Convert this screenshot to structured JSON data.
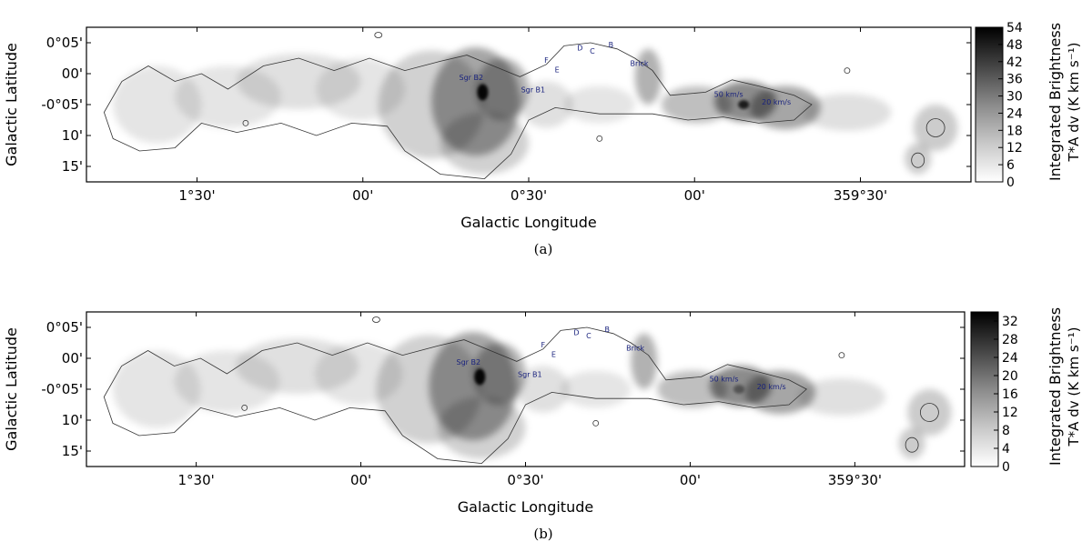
{
  "chart_data": [
    {
      "type": "heatmap",
      "panel": "(a)",
      "xlabel": "Galactic Longitude",
      "ylabel": "Galactic Latitude",
      "x_ticks": [
        "1°30'",
        "00'",
        "0°30'",
        "00'",
        "359°30'"
      ],
      "y_ticks": [
        "0°05'",
        "00'",
        "-0°05'",
        "10'",
        "15'"
      ],
      "colorbar": {
        "label_main": "Integrated Brightness",
        "label_sub": "T*A dv (K km s⁻¹)",
        "ticks": [
          "54",
          "48",
          "42",
          "36",
          "30",
          "24",
          "18",
          "12",
          "6",
          "0"
        ],
        "range": [
          0,
          54
        ],
        "colormap": "gray_r"
      },
      "annotations": [
        {
          "text": "Sgr B2",
          "role": "source",
          "intensity": 54
        },
        {
          "text": "Sgr B1",
          "role": "source"
        },
        {
          "text": "F",
          "role": "source"
        },
        {
          "text": "E",
          "role": "source"
        },
        {
          "text": "D",
          "role": "source"
        },
        {
          "text": "C",
          "role": "source"
        },
        {
          "text": "B",
          "role": "source"
        },
        {
          "text": "Brick",
          "role": "source"
        },
        {
          "text": "50 km/s",
          "role": "source"
        },
        {
          "text": "20 km/s",
          "role": "source"
        }
      ]
    },
    {
      "type": "heatmap",
      "panel": "(b)",
      "xlabel": "Galactic Longitude",
      "ylabel": "Galactic Latitude",
      "x_ticks": [
        "1°30'",
        "00'",
        "0°30'",
        "00'",
        "359°30'"
      ],
      "y_ticks": [
        "0°05'",
        "00'",
        "-0°05'",
        "10'",
        "15'"
      ],
      "colorbar": {
        "label_main": "Integrated Brightness",
        "label_sub": "T*A dv (K km s⁻¹)",
        "ticks": [
          "32",
          "28",
          "24",
          "20",
          "16",
          "12",
          "8",
          "4",
          "0"
        ],
        "range": [
          0,
          34
        ],
        "colormap": "gray_r"
      },
      "annotations": [
        {
          "text": "Sgr B2",
          "role": "source",
          "intensity": 34
        },
        {
          "text": "Sgr B1",
          "role": "source"
        },
        {
          "text": "F",
          "role": "source"
        },
        {
          "text": "E",
          "role": "source"
        },
        {
          "text": "D",
          "role": "source"
        },
        {
          "text": "C",
          "role": "source"
        },
        {
          "text": "B",
          "role": "source"
        },
        {
          "text": "Brick",
          "role": "source"
        },
        {
          "text": "50 km/s",
          "role": "source"
        },
        {
          "text": "20 km/s",
          "role": "source"
        }
      ]
    }
  ]
}
